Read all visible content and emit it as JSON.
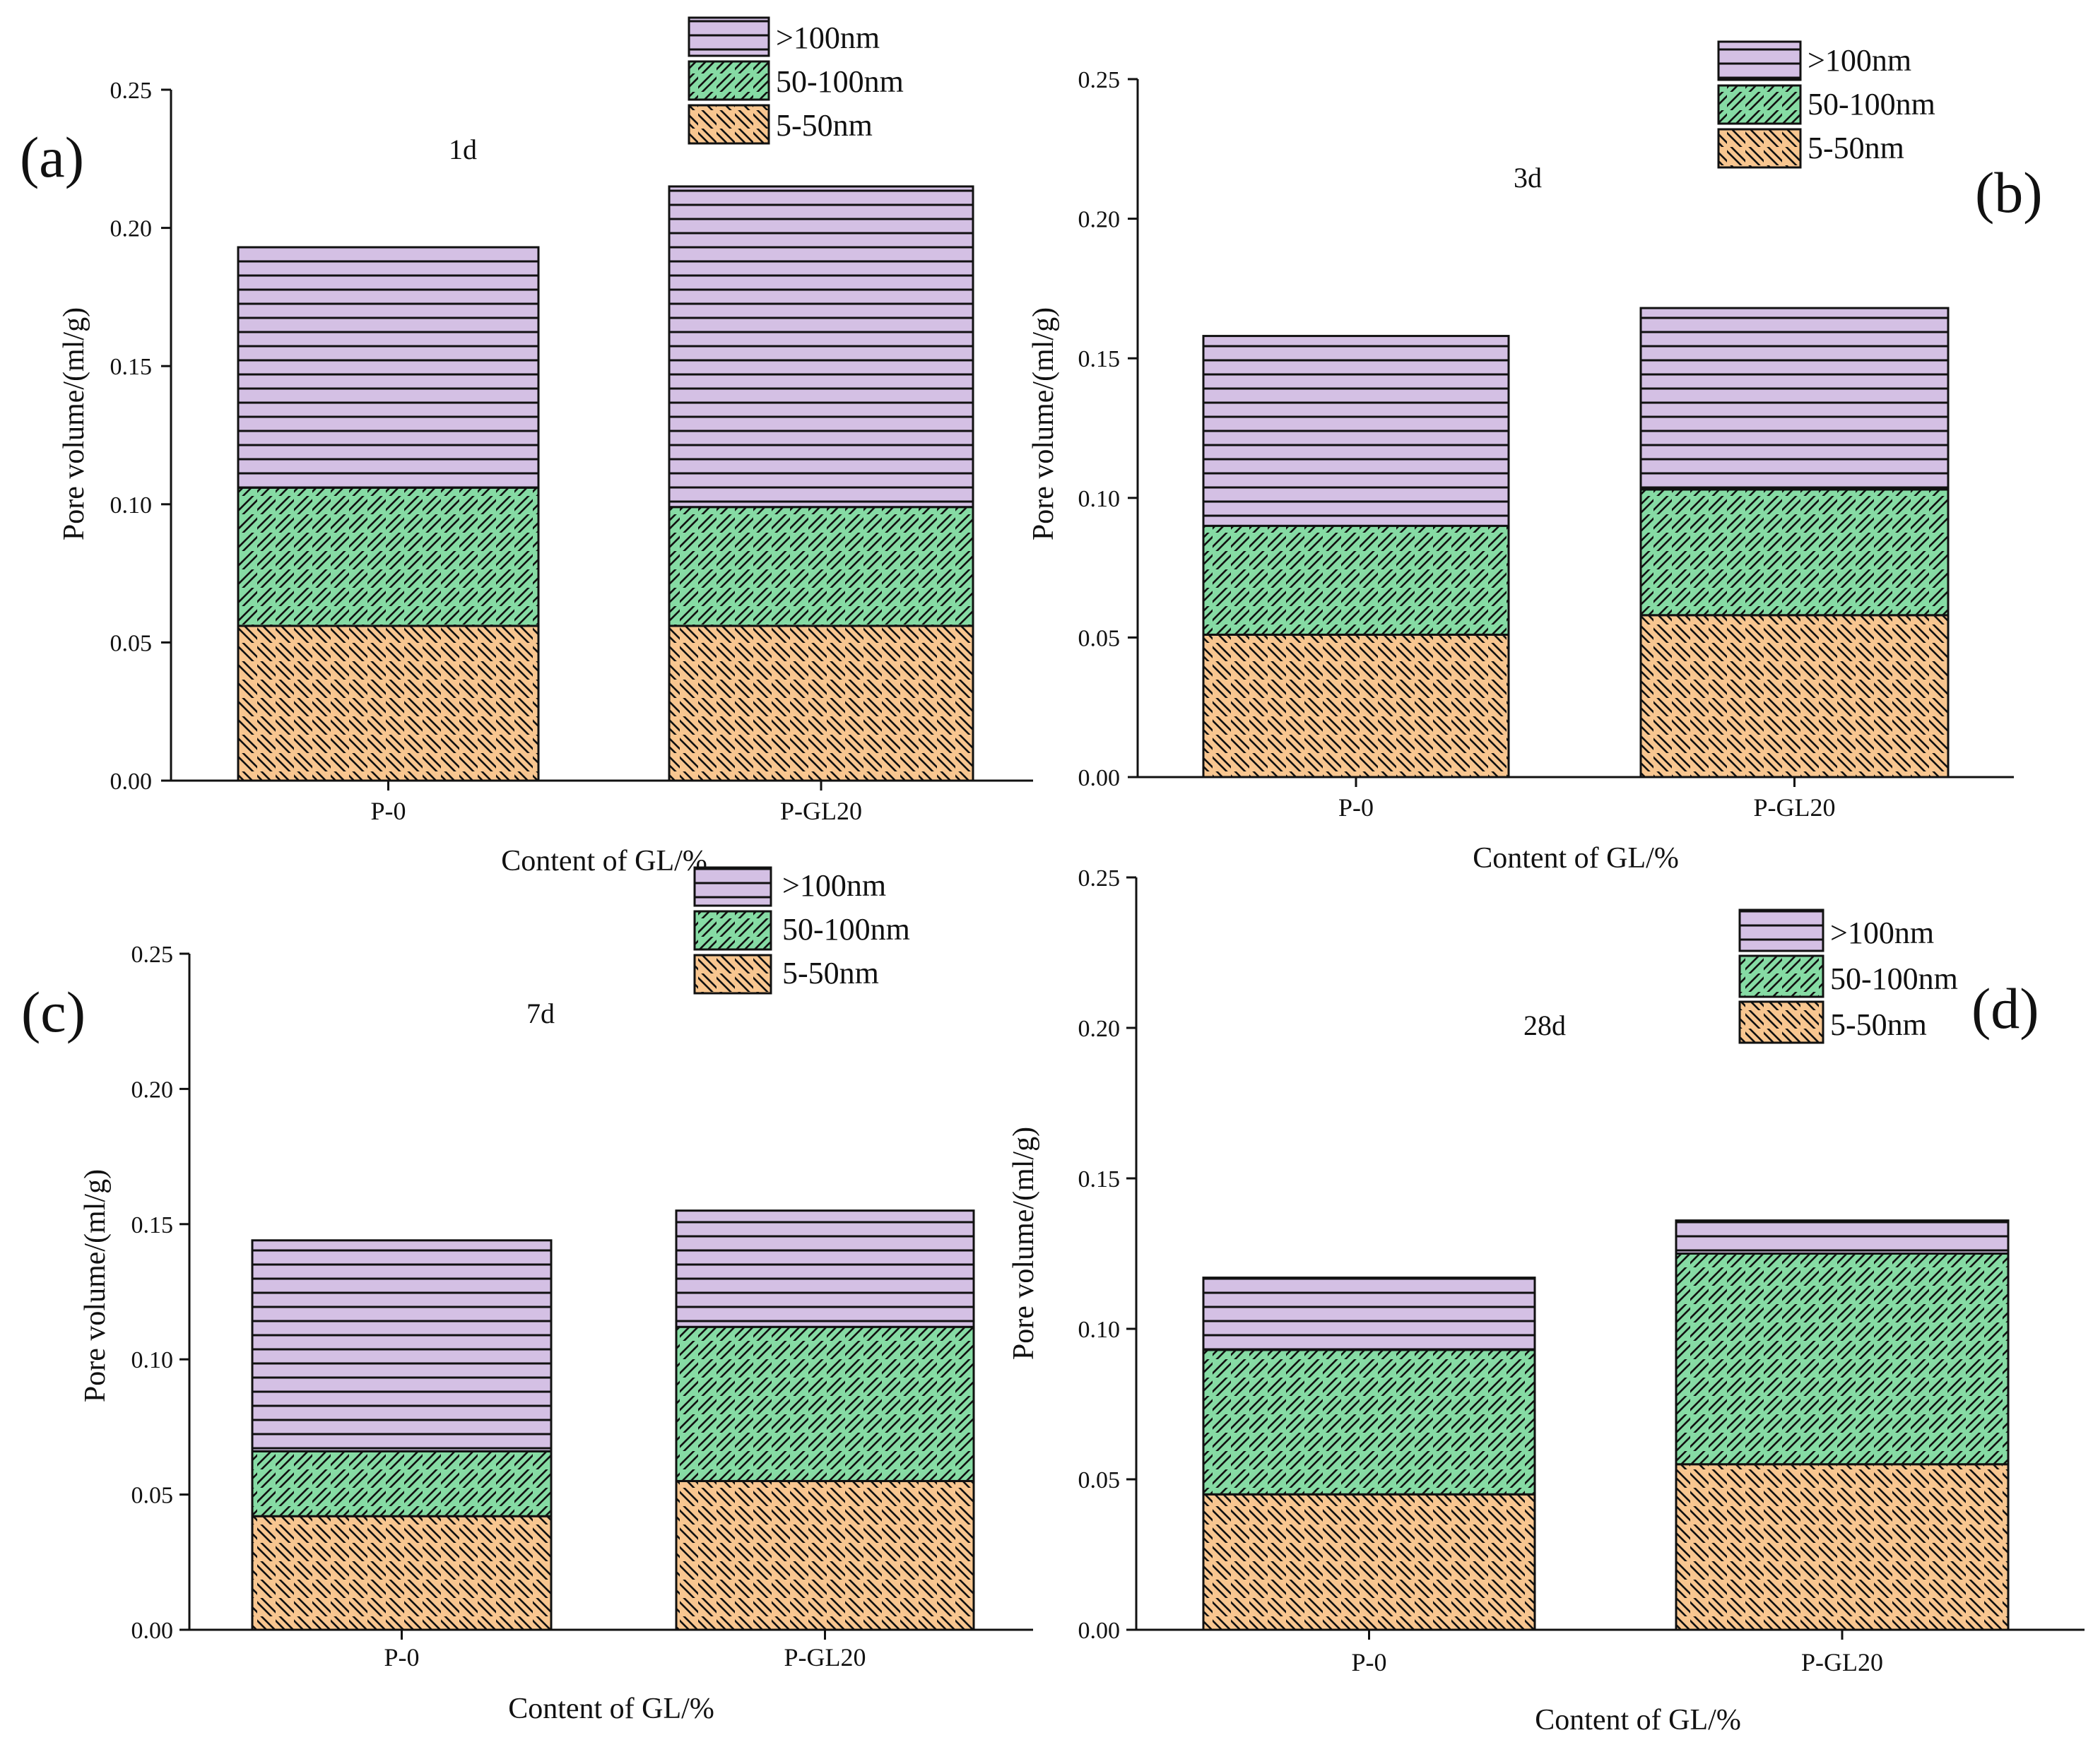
{
  "colors": {
    "purple": "#d4c0e4",
    "green": "#86dba4",
    "orange": "#f8c690",
    "stroke": "#111111"
  },
  "chart_data": [
    {
      "type": "bar",
      "stacked": true,
      "panel_label": "(a)",
      "title": "1d",
      "categories": [
        "P-0",
        "P-GL20"
      ],
      "series": [
        {
          "name": "5-50nm",
          "values": [
            0.056,
            0.056
          ]
        },
        {
          "name": "50-100nm",
          "values": [
            0.05,
            0.043
          ]
        },
        {
          "name": ">100nm",
          "values": [
            0.087,
            0.116
          ]
        }
      ],
      "legend": [
        ">100nm",
        "50-100nm",
        "5-50nm"
      ],
      "xlabel": "Content of GL/%",
      "ylabel": "Pore volume/(ml/g)",
      "ylim": [
        0,
        0.25
      ],
      "yticks": [
        "0.00",
        "0.05",
        "0.10",
        "0.15",
        "0.20",
        "0.25"
      ]
    },
    {
      "type": "bar",
      "stacked": true,
      "panel_label": "(b)",
      "title": "3d",
      "categories": [
        "P-0",
        "P-GL20"
      ],
      "series": [
        {
          "name": "5-50nm",
          "values": [
            0.051,
            0.058
          ]
        },
        {
          "name": "50-100nm",
          "values": [
            0.039,
            0.045
          ]
        },
        {
          "name": ">100nm",
          "values": [
            0.068,
            0.065
          ]
        }
      ],
      "legend": [
        ">100nm",
        "50-100nm",
        "5-50nm"
      ],
      "xlabel": "Content of GL/%",
      "ylabel": "Pore volume/(ml/g)",
      "ylim": [
        0,
        0.25
      ],
      "yticks": [
        "0.00",
        "0.05",
        "0.10",
        "0.15",
        "0.20",
        "0.25"
      ]
    },
    {
      "type": "bar",
      "stacked": true,
      "panel_label": "(c)",
      "title": "7d",
      "categories": [
        "P-0",
        "P-GL20"
      ],
      "series": [
        {
          "name": "5-50nm",
          "values": [
            0.042,
            0.055
          ]
        },
        {
          "name": "50-100nm",
          "values": [
            0.024,
            0.057
          ]
        },
        {
          "name": ">100nm",
          "values": [
            0.078,
            0.043
          ]
        }
      ],
      "legend": [
        ">100nm",
        "50-100nm",
        "5-50nm"
      ],
      "xlabel": "Content of GL/%",
      "ylabel": "Pore volume/(ml/g)",
      "ylim": [
        0,
        0.25
      ],
      "yticks": [
        "0.00",
        "0.05",
        "0.10",
        "0.15",
        "0.20",
        "0.25"
      ]
    },
    {
      "type": "bar",
      "stacked": true,
      "panel_label": "(d)",
      "title": "28d",
      "categories": [
        "P-0",
        "P-GL20"
      ],
      "series": [
        {
          "name": "5-50nm",
          "values": [
            0.045,
            0.055
          ]
        },
        {
          "name": "50-100nm",
          "values": [
            0.048,
            0.07
          ]
        },
        {
          "name": ">100nm",
          "values": [
            0.024,
            0.011
          ]
        }
      ],
      "legend": [
        ">100nm",
        "50-100nm",
        "5-50nm"
      ],
      "xlabel": "Content of GL/%",
      "ylabel": "Pore volume/(ml/g)",
      "ylim": [
        0,
        0.25
      ],
      "yticks": [
        "0.00",
        "0.05",
        "0.10",
        "0.15",
        "0.20",
        "0.25"
      ]
    }
  ]
}
